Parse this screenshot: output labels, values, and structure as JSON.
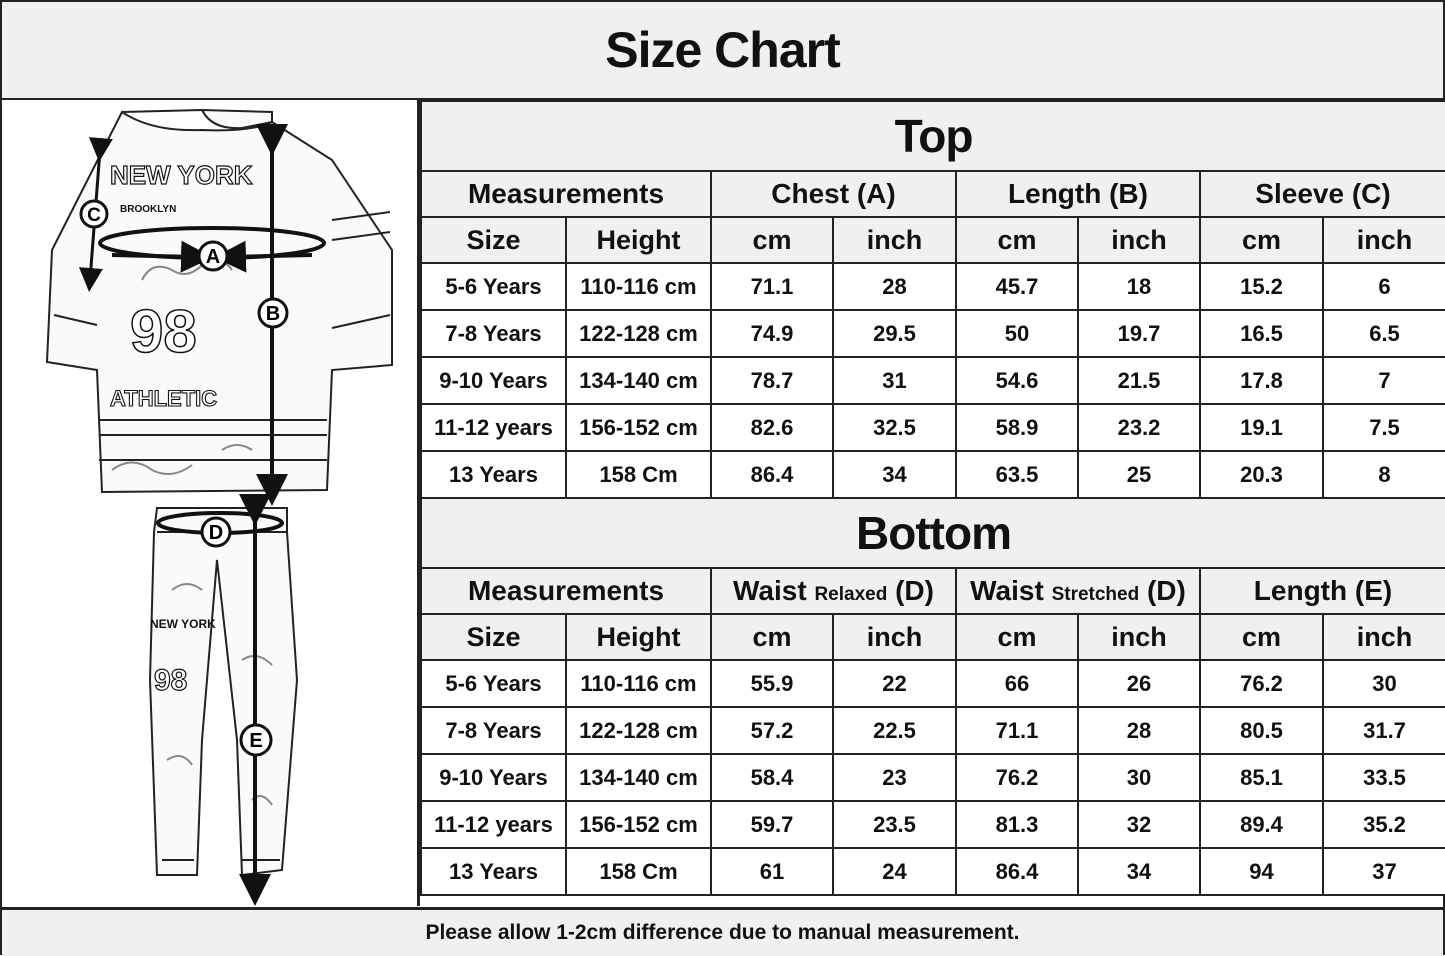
{
  "title": "Size Chart",
  "illustration": {
    "markers": [
      "A",
      "B",
      "C",
      "D",
      "E"
    ],
    "shirt_print": [
      "NEW YORK",
      "BROOKLYN",
      "98",
      "ATHLETIC"
    ],
    "pants_print": [
      "NEW YORK",
      "98"
    ]
  },
  "top": {
    "title": "Top",
    "groups": [
      "Measurements",
      "Chest (A)",
      "Length (B)",
      "Sleeve (C)"
    ],
    "subheaders": [
      "Size",
      "Height",
      "cm",
      "inch",
      "cm",
      "inch",
      "cm",
      "inch"
    ],
    "rows": [
      [
        "5-6 Years",
        "110-116 cm",
        "71.1",
        "28",
        "45.7",
        "18",
        "15.2",
        "6"
      ],
      [
        "7-8 Years",
        "122-128 cm",
        "74.9",
        "29.5",
        "50",
        "19.7",
        "16.5",
        "6.5"
      ],
      [
        "9-10 Years",
        "134-140 cm",
        "78.7",
        "31",
        "54.6",
        "21.5",
        "17.8",
        "7"
      ],
      [
        "11-12 years",
        "156-152 cm",
        "82.6",
        "32.5",
        "58.9",
        "23.2",
        "19.1",
        "7.5"
      ],
      [
        "13 Years",
        "158 Cm",
        "86.4",
        "34",
        "63.5",
        "25",
        "20.3",
        "8"
      ]
    ]
  },
  "bottom": {
    "title": "Bottom",
    "groups": [
      {
        "main": "Measurements",
        "small": "",
        "suffix": ""
      },
      {
        "main": "Waist",
        "small": "Relaxed",
        "suffix": "(D)"
      },
      {
        "main": "Waist",
        "small": "Stretched",
        "suffix": "(D)"
      },
      {
        "main": "Length (E)",
        "small": "",
        "suffix": ""
      }
    ],
    "subheaders": [
      "Size",
      "Height",
      "cm",
      "inch",
      "cm",
      "inch",
      "cm",
      "inch"
    ],
    "rows": [
      [
        "5-6 Years",
        "110-116 cm",
        "55.9",
        "22",
        "66",
        "26",
        "76.2",
        "30"
      ],
      [
        "7-8 Years",
        "122-128 cm",
        "57.2",
        "22.5",
        "71.1",
        "28",
        "80.5",
        "31.7"
      ],
      [
        "9-10 Years",
        "134-140 cm",
        "58.4",
        "23",
        "76.2",
        "30",
        "85.1",
        "33.5"
      ],
      [
        "11-12 years",
        "156-152 cm",
        "59.7",
        "23.5",
        "81.3",
        "32",
        "89.4",
        "35.2"
      ],
      [
        "13 Years",
        "158 Cm",
        "61",
        "24",
        "86.4",
        "34",
        "94",
        "37"
      ]
    ]
  },
  "footer": "Please allow 1-2cm difference due to manual measurement."
}
